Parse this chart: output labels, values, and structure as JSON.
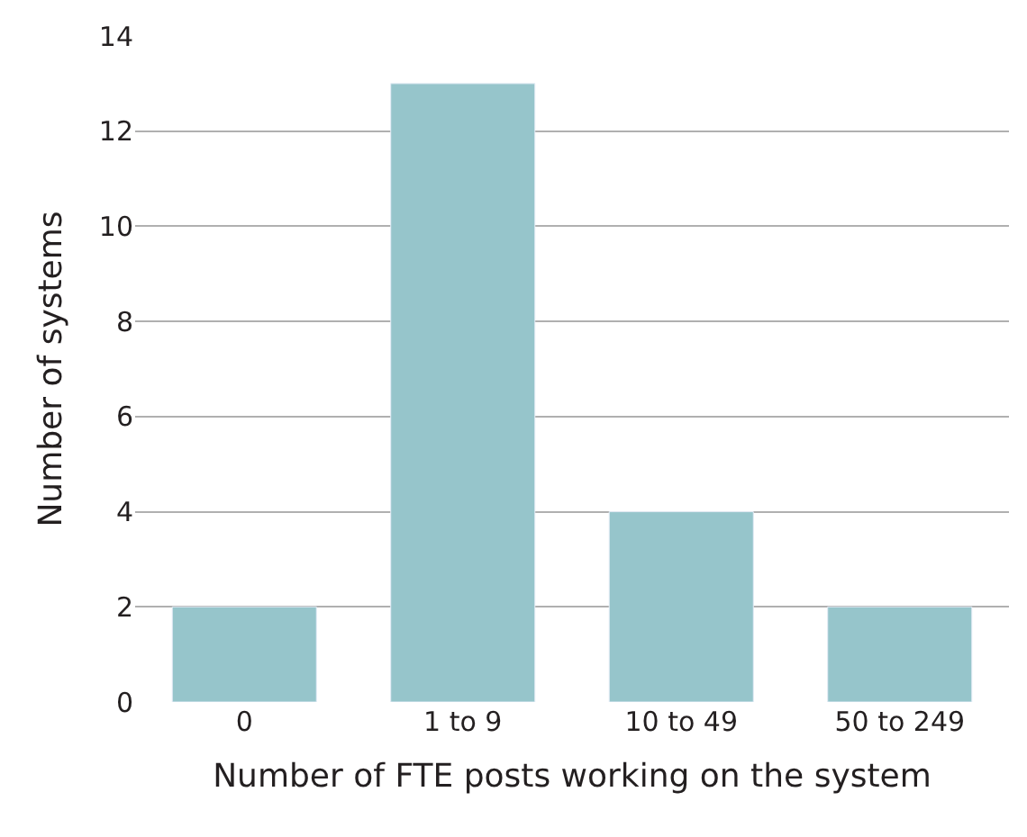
{
  "chart_data": {
    "type": "bar",
    "xlabel": "Number of FTE posts working on the system",
    "ylabel": "Number of systems",
    "categories": [
      "0",
      "1 to 9",
      "10 to 49",
      "50 to 249"
    ],
    "values": [
      2,
      13,
      4,
      2
    ],
    "color": "#96c5cb",
    "ylim": [
      0,
      14
    ],
    "yticks": [
      0,
      2,
      4,
      6,
      8,
      10,
      12,
      14
    ],
    "grid": "y"
  }
}
